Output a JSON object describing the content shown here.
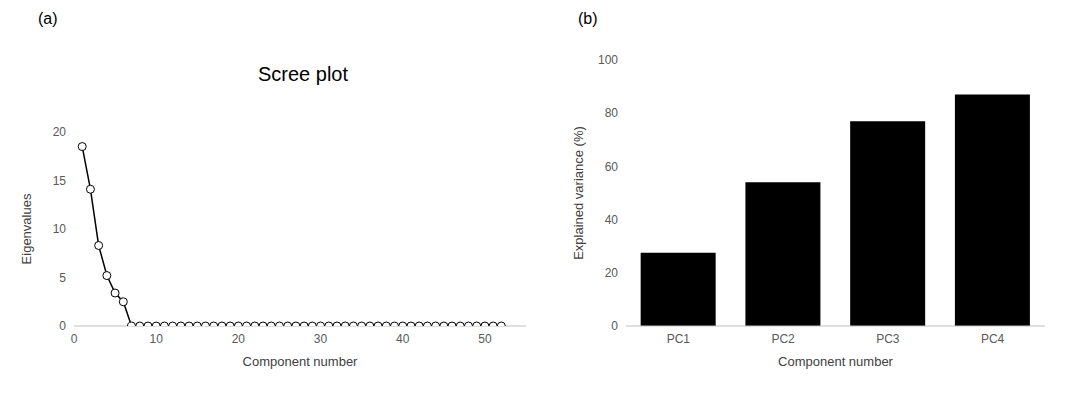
{
  "chart_data": [
    {
      "type": "line",
      "annotations": [
        "(a)"
      ],
      "title": "Scree plot",
      "x_label": "Component number",
      "y_label": "Eigenvalues",
      "x": [
        1,
        2,
        3,
        4,
        5,
        6,
        7,
        8,
        9,
        10,
        11,
        12,
        13,
        14,
        15,
        16,
        17,
        18,
        19,
        20,
        21,
        22,
        23,
        24,
        25,
        26,
        27,
        28,
        29,
        30,
        31,
        32,
        33,
        34,
        35,
        36,
        37,
        38,
        39,
        40,
        41,
        42,
        43,
        44,
        45,
        46,
        47,
        48,
        49,
        50,
        51,
        52
      ],
      "values": [
        18.5,
        14.1,
        8.3,
        5.2,
        3.4,
        2.5,
        0,
        0,
        0,
        0,
        0,
        0,
        0,
        0,
        0,
        0,
        0,
        0,
        0,
        0,
        0,
        0,
        0,
        0,
        0,
        0,
        0,
        0,
        0,
        0,
        0,
        0,
        0,
        0,
        0,
        0,
        0,
        0,
        0,
        0,
        0,
        0,
        0,
        0,
        0,
        0,
        0,
        0,
        0,
        0,
        0,
        0
      ],
      "color": "#000000",
      "marker": "circle",
      "xlim": [
        0,
        55
      ],
      "xticks": [
        0,
        10,
        20,
        30,
        40,
        50
      ],
      "ylim": [
        0,
        20
      ],
      "yticks": [
        0,
        5,
        10,
        15,
        20
      ],
      "grid": false
    },
    {
      "type": "bar",
      "annotations": [
        "(b)"
      ],
      "x_label": "Component number",
      "y_label": "Explained variance (%)",
      "categories": [
        "PC1",
        "PC2",
        "PC3",
        "PC4"
      ],
      "values": [
        27.5,
        54,
        77,
        87
      ],
      "color": "#000000",
      "ylim": [
        0,
        100
      ],
      "yticks": [
        0,
        20,
        40,
        60,
        80,
        100
      ],
      "grid": false
    }
  ]
}
